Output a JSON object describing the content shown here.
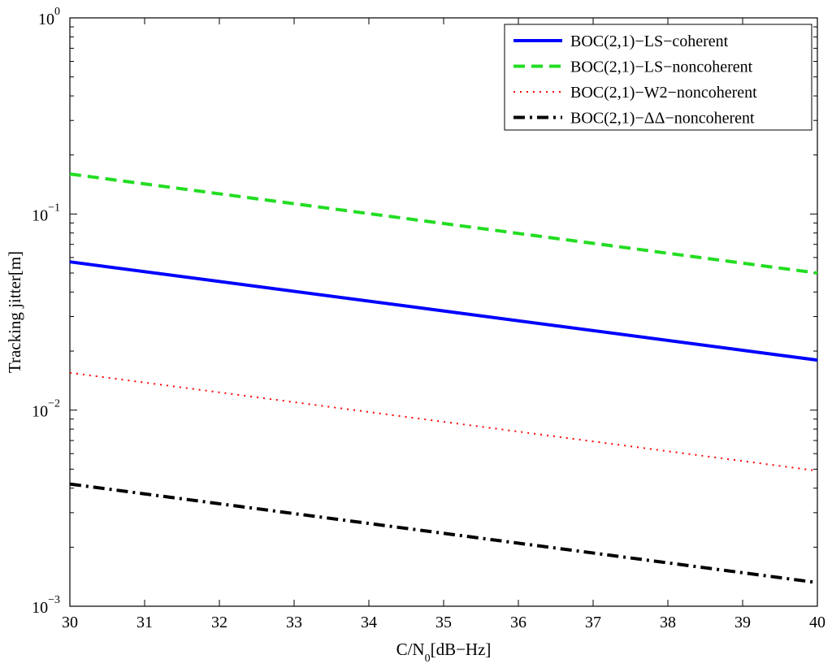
{
  "chart_data": {
    "type": "line",
    "title": "",
    "xlabel": {
      "main": "C/N",
      "sub": "0",
      "rest": "[dB−Hz]"
    },
    "ylabel": "Tracking jitter[m]",
    "xlim": [
      30,
      40
    ],
    "ylim": [
      0.001,
      1
    ],
    "yscale": "log",
    "grid": false,
    "legend_position": "top-right",
    "x_ticks": [
      30,
      31,
      32,
      33,
      34,
      35,
      36,
      37,
      38,
      39,
      40
    ],
    "y_ticks": [
      {
        "value": 1,
        "base": "10",
        "exp": "0"
      },
      {
        "value": 0.1,
        "base": "10",
        "exp": "−1"
      },
      {
        "value": 0.01,
        "base": "10",
        "exp": "−2"
      },
      {
        "value": 0.001,
        "base": "10",
        "exp": "−3"
      }
    ],
    "x": [
      30,
      40
    ],
    "series": [
      {
        "name": "BOC(2,1)−LS−coherent",
        "values": [
          0.057,
          0.018
        ],
        "color": "#0000ff",
        "dash": "solid"
      },
      {
        "name": "BOC(2,1)−LS−noncoherent",
        "values": [
          0.16,
          0.05
        ],
        "color": "#22dd22",
        "dash": "dashed"
      },
      {
        "name": "BOC(2,1)−W2−noncoherent",
        "values": [
          0.0155,
          0.0049
        ],
        "color": "#ff0000",
        "dash": "dotted"
      },
      {
        "name": "BOC(2,1)−ΔΔ−noncoherent",
        "values": [
          0.0042,
          0.00132
        ],
        "color": "#000000",
        "dash": "dashdot"
      }
    ]
  }
}
